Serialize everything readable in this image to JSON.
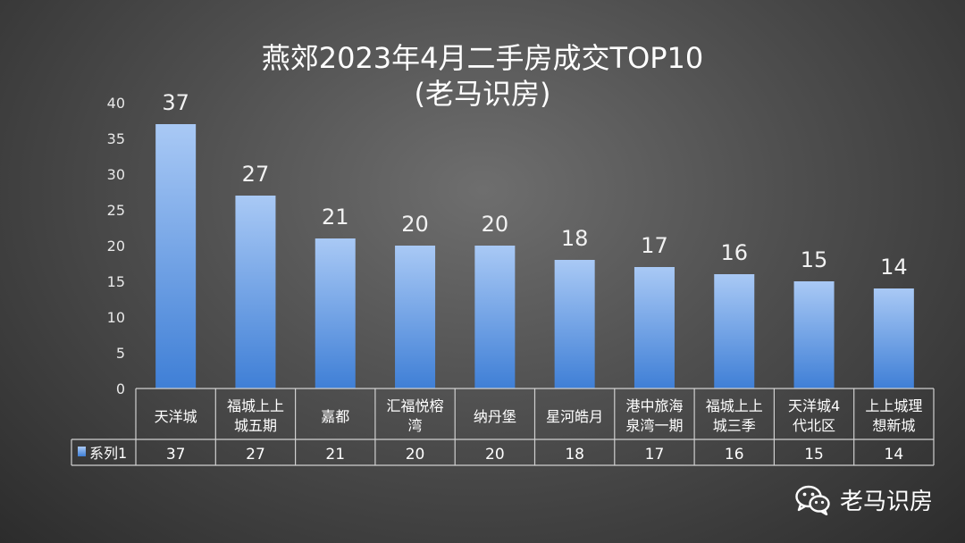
{
  "chart_data": {
    "type": "bar",
    "title": "燕郊2023年4月二手房成交TOP10",
    "subtitle": "(老马识房)",
    "categories": [
      "天洋城",
      "福城上上城五期",
      "嘉都",
      "汇福悦榕湾",
      "纳丹堡",
      "星河皓月",
      "港中旅海泉湾一期",
      "福城上上城三季",
      "天洋城4代北区",
      "上上城理想新城"
    ],
    "category_lines": [
      [
        "天洋城"
      ],
      [
        "福城上上",
        "城五期"
      ],
      [
        "嘉都"
      ],
      [
        "汇福悦榕",
        "湾"
      ],
      [
        "纳丹堡"
      ],
      [
        "星河皓月"
      ],
      [
        "港中旅海",
        "泉湾一期"
      ],
      [
        "福城上上",
        "城三季"
      ],
      [
        "天洋城4",
        "代北区"
      ],
      [
        "上上城理",
        "想新城"
      ]
    ],
    "series": [
      {
        "name": "系列1",
        "values": [
          37,
          27,
          21,
          20,
          20,
          18,
          17,
          16,
          15,
          14
        ]
      }
    ],
    "ylim": [
      0,
      40
    ],
    "yticks": [
      0,
      5,
      10,
      15,
      20,
      25,
      30,
      35,
      40
    ],
    "grid": false,
    "data_labels": true,
    "data_table": true,
    "legend": "data-table-left",
    "colors": {
      "bar_top": "#a9c9f5",
      "bar_bottom": "#3f7fd6",
      "table_border": "#d0d0d0",
      "background": "#4a4a4a"
    }
  },
  "watermark": {
    "text": "老马识房",
    "icon": "wechat-icon"
  }
}
